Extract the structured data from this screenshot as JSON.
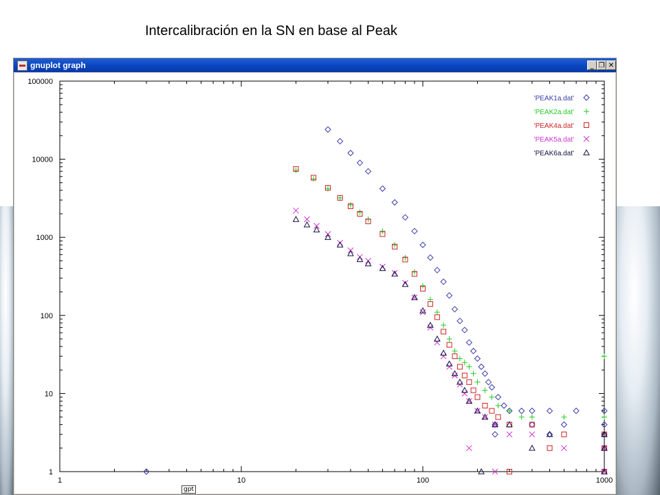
{
  "slide": {
    "title": "Intercalibración en la SN en base al Peak"
  },
  "window": {
    "title": "gnuplot graph",
    "buttons": {
      "minimize": "_",
      "restore": "❐",
      "close": "✕"
    },
    "status_tag": "gpt"
  },
  "colors": {
    "peak1": "#3a3aa8",
    "peak2": "#22cc22",
    "peak4": "#cc2222",
    "peak5": "#cc33cc",
    "peak6": "#101040"
  },
  "chart_data": {
    "type": "scatter",
    "xscale": "log",
    "yscale": "log",
    "xlim": [
      1,
      1000
    ],
    "ylim": [
      1,
      100000
    ],
    "x_ticks": [
      "1",
      "10",
      "100",
      "1000"
    ],
    "y_ticks": [
      "1",
      "10",
      "100",
      "1000",
      "10000",
      "100000"
    ],
    "legend_position": "top-right",
    "series": [
      {
        "name": "'PEAK1a.dat'",
        "marker": "diamond",
        "color": "#3a3aa8",
        "points": [
          [
            30,
            24000
          ],
          [
            35,
            17000
          ],
          [
            40,
            12000
          ],
          [
            45,
            9000
          ],
          [
            50,
            7000
          ],
          [
            60,
            4200
          ],
          [
            70,
            2800
          ],
          [
            80,
            1800
          ],
          [
            90,
            1200
          ],
          [
            100,
            800
          ],
          [
            110,
            550
          ],
          [
            120,
            380
          ],
          [
            130,
            270
          ],
          [
            140,
            180
          ],
          [
            150,
            120
          ],
          [
            160,
            85
          ],
          [
            170,
            65
          ],
          [
            180,
            45
          ],
          [
            190,
            35
          ],
          [
            200,
            28
          ],
          [
            210,
            22
          ],
          [
            220,
            18
          ],
          [
            230,
            14
          ],
          [
            240,
            12
          ],
          [
            260,
            9
          ],
          [
            280,
            7
          ],
          [
            300,
            6
          ],
          [
            350,
            6
          ],
          [
            400,
            6
          ],
          [
            500,
            6
          ],
          [
            700,
            6
          ],
          [
            1000,
            6
          ],
          [
            250,
            4
          ],
          [
            400,
            4
          ],
          [
            600,
            4
          ],
          [
            1000,
            4
          ],
          [
            250,
            3
          ],
          [
            500,
            3
          ],
          [
            1000,
            3
          ],
          [
            3,
            1
          ]
        ]
      },
      {
        "name": "'PEAK2a.dat'",
        "marker": "plus",
        "color": "#22cc22",
        "points": [
          [
            20,
            7200
          ],
          [
            25,
            5600
          ],
          [
            30,
            4200
          ],
          [
            35,
            3200
          ],
          [
            40,
            2600
          ],
          [
            45,
            2100
          ],
          [
            50,
            1700
          ],
          [
            60,
            1200
          ],
          [
            70,
            800
          ],
          [
            80,
            550
          ],
          [
            90,
            360
          ],
          [
            100,
            240
          ],
          [
            110,
            160
          ],
          [
            120,
            110
          ],
          [
            130,
            75
          ],
          [
            140,
            50
          ],
          [
            150,
            35
          ],
          [
            160,
            28
          ],
          [
            170,
            25
          ],
          [
            180,
            22
          ],
          [
            190,
            18
          ],
          [
            200,
            14
          ],
          [
            220,
            11
          ],
          [
            240,
            9
          ],
          [
            260,
            7
          ],
          [
            300,
            6
          ],
          [
            350,
            5
          ],
          [
            400,
            5
          ],
          [
            600,
            5
          ],
          [
            1000,
            5
          ],
          [
            1000,
            30
          ]
        ]
      },
      {
        "name": "'PEAK4a.dat'",
        "marker": "square",
        "color": "#cc2222",
        "points": [
          [
            20,
            7500
          ],
          [
            25,
            5800
          ],
          [
            30,
            4300
          ],
          [
            35,
            3200
          ],
          [
            40,
            2500
          ],
          [
            45,
            2000
          ],
          [
            50,
            1600
          ],
          [
            60,
            1100
          ],
          [
            70,
            760
          ],
          [
            80,
            520
          ],
          [
            90,
            340
          ],
          [
            100,
            220
          ],
          [
            110,
            140
          ],
          [
            120,
            95
          ],
          [
            130,
            62
          ],
          [
            140,
            42
          ],
          [
            150,
            30
          ],
          [
            160,
            22
          ],
          [
            170,
            17
          ],
          [
            180,
            14
          ],
          [
            190,
            11
          ],
          [
            200,
            9
          ],
          [
            220,
            7
          ],
          [
            240,
            6
          ],
          [
            260,
            5
          ],
          [
            300,
            4
          ],
          [
            400,
            4
          ],
          [
            600,
            3
          ],
          [
            1000,
            3
          ],
          [
            500,
            2
          ],
          [
            1000,
            2
          ],
          [
            300,
            1
          ],
          [
            1000,
            1
          ]
        ]
      },
      {
        "name": "'PEAK5a.dat'",
        "marker": "cross",
        "color": "#cc33cc",
        "points": [
          [
            20,
            2200
          ],
          [
            23,
            1700
          ],
          [
            26,
            1400
          ],
          [
            30,
            1100
          ],
          [
            35,
            850
          ],
          [
            40,
            680
          ],
          [
            45,
            560
          ],
          [
            50,
            500
          ],
          [
            60,
            420
          ],
          [
            70,
            350
          ],
          [
            80,
            260
          ],
          [
            90,
            170
          ],
          [
            100,
            110
          ],
          [
            110,
            70
          ],
          [
            120,
            45
          ],
          [
            130,
            30
          ],
          [
            140,
            22
          ],
          [
            150,
            17
          ],
          [
            160,
            13
          ],
          [
            170,
            10
          ],
          [
            180,
            8
          ],
          [
            200,
            6
          ],
          [
            220,
            5
          ],
          [
            250,
            4
          ],
          [
            300,
            3
          ],
          [
            400,
            3
          ],
          [
            600,
            2
          ],
          [
            1000,
            2
          ],
          [
            180,
            2
          ],
          [
            1000,
            1
          ],
          [
            250,
            1
          ]
        ]
      },
      {
        "name": "'PEAK6a.dat'",
        "marker": "triangle",
        "color": "#101040",
        "points": [
          [
            20,
            1700
          ],
          [
            23,
            1450
          ],
          [
            26,
            1250
          ],
          [
            30,
            1000
          ],
          [
            35,
            800
          ],
          [
            40,
            620
          ],
          [
            45,
            520
          ],
          [
            50,
            460
          ],
          [
            60,
            400
          ],
          [
            70,
            340
          ],
          [
            80,
            250
          ],
          [
            90,
            170
          ],
          [
            100,
            115
          ],
          [
            110,
            75
          ],
          [
            120,
            50
          ],
          [
            130,
            33
          ],
          [
            140,
            24
          ],
          [
            150,
            18
          ],
          [
            160,
            14
          ],
          [
            170,
            11
          ],
          [
            180,
            8
          ],
          [
            200,
            6
          ],
          [
            220,
            5
          ],
          [
            250,
            4
          ],
          [
            300,
            4
          ],
          [
            500,
            3
          ],
          [
            1000,
            3
          ],
          [
            400,
            2
          ],
          [
            1000,
            2
          ],
          [
            210,
            1
          ],
          [
            1000,
            1
          ]
        ]
      }
    ]
  }
}
